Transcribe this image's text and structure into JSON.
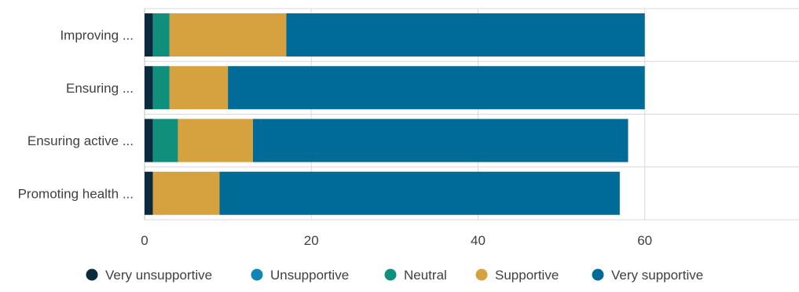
{
  "chart_data": {
    "type": "bar",
    "orientation": "horizontal",
    "stacked": true,
    "title": "",
    "xlabel": "",
    "ylabel": "",
    "categories": [
      "Improving ...",
      "Ensuring ...",
      "Ensuring active ...",
      "Promoting health ..."
    ],
    "series": [
      {
        "name": "Very unsupportive",
        "color": "#0b2a3d",
        "values": [
          1,
          1,
          1,
          1
        ]
      },
      {
        "name": "Unsupportive",
        "color": "#0f86b4",
        "values": [
          0,
          0,
          0,
          0
        ]
      },
      {
        "name": "Neutral",
        "color": "#0f8f7c",
        "values": [
          2,
          2,
          3,
          0
        ]
      },
      {
        "name": "Supportive",
        "color": "#d6a240",
        "values": [
          14,
          7,
          9,
          8
        ]
      },
      {
        "name": "Very supportive",
        "color": "#006b97",
        "values": [
          43,
          50,
          45,
          48
        ]
      }
    ],
    "xlim": [
      0,
      78.5
    ],
    "xticks": [
      0,
      20,
      40,
      60
    ],
    "grid": true,
    "legend": "bottom"
  }
}
